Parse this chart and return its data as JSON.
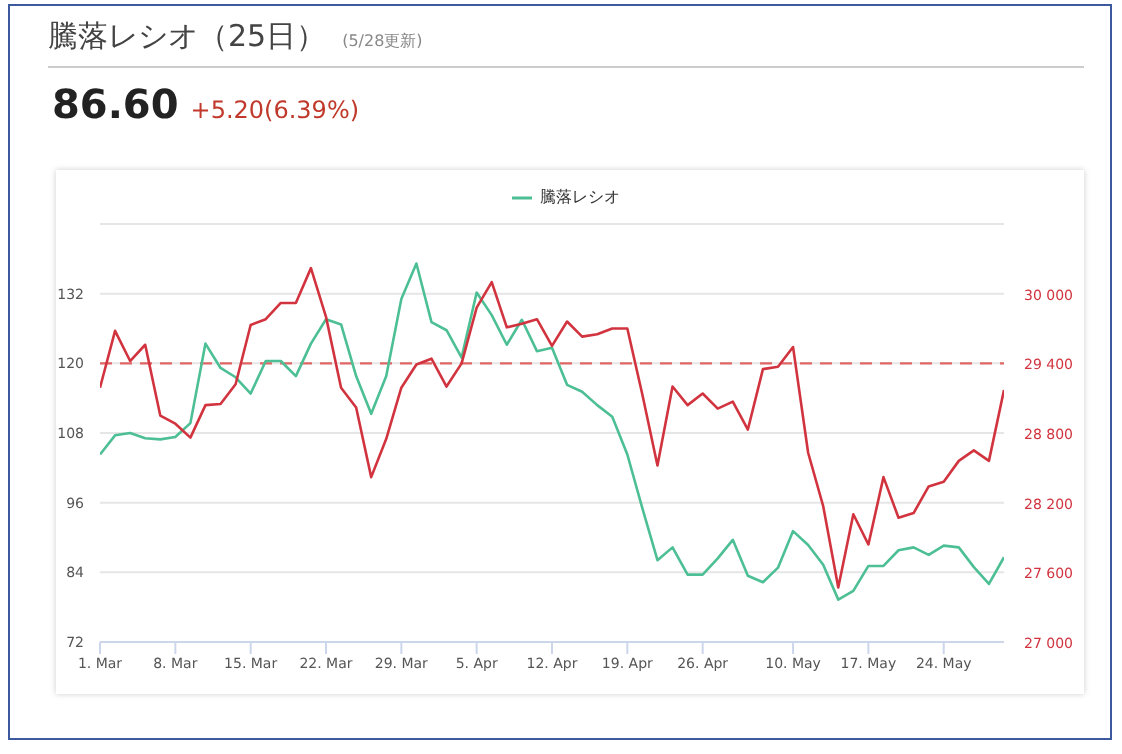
{
  "chart_data": {
    "type": "line",
    "title": "騰落レシオ（25日）",
    "subtitle": "(5/28更新)",
    "annotations": [
      "86.60",
      "+5.20(6.39%)"
    ],
    "categories": [
      "1. Mar",
      null,
      null,
      null,
      null,
      "8. Mar",
      null,
      null,
      null,
      null,
      "15. Mar",
      null,
      null,
      null,
      null,
      "22. Mar",
      null,
      null,
      null,
      null,
      "29. Mar",
      null,
      null,
      null,
      null,
      "5. Apr",
      null,
      null,
      null,
      null,
      "12. Apr",
      null,
      null,
      null,
      null,
      "19. Apr",
      null,
      null,
      null,
      null,
      "26. Apr",
      null,
      null,
      null,
      null,
      null,
      "10. May",
      null,
      null,
      null,
      null,
      "17. May",
      null,
      null,
      null,
      null,
      "24. May",
      null,
      null,
      null,
      null
    ],
    "series": [
      {
        "name": "騰落レシオ",
        "color": "#4dbf94",
        "axis": "y",
        "values": [
          104.3,
          107.6,
          108.0,
          107.1,
          106.9,
          107.3,
          109.7,
          123.4,
          119.2,
          117.6,
          114.8,
          120.4,
          120.4,
          117.8,
          123.4,
          127.6,
          126.7,
          117.8,
          111.3,
          117.8,
          131.1,
          137.2,
          127.1,
          125.7,
          121.0,
          132.2,
          128.3,
          123.2,
          127.5,
          122.1,
          122.7,
          116.3,
          115.1,
          112.8,
          110.8,
          104.3,
          95.0,
          86.1,
          88.3,
          83.6,
          83.6,
          86.4,
          89.6,
          83.4,
          82.3,
          84.8,
          91.1,
          88.7,
          85.3,
          79.3,
          80.8,
          85.1,
          85.1,
          87.8,
          88.3,
          87.0,
          88.6,
          88.3,
          84.9,
          82.0,
          86.6
        ]
      },
      {
        "color": "#d1343f",
        "axis": "y2",
        "values": [
          29190,
          29680,
          29420,
          29560,
          28950,
          28880,
          28760,
          29040,
          29050,
          29220,
          29730,
          29780,
          29920,
          29920,
          30220,
          29800,
          29190,
          29020,
          28420,
          28750,
          29190,
          29390,
          29440,
          29200,
          29400,
          29880,
          30100,
          29710,
          29740,
          29780,
          29550,
          29760,
          29630,
          29650,
          29700,
          29700,
          29130,
          28520,
          29200,
          29040,
          29140,
          29010,
          29070,
          28830,
          29350,
          29370,
          29540,
          28630,
          28170,
          27470,
          28100,
          27840,
          28420,
          28070,
          28110,
          28340,
          28380,
          28560,
          28650,
          28560,
          29170
        ]
      }
    ],
    "ylim": [
      72,
      144
    ],
    "yticks": [
      72,
      84,
      96,
      108,
      120,
      132,
      {
        "value": 144,
        "label": null
      }
    ],
    "y2lim": [
      27000,
      30600
    ],
    "y2ticks": [
      {
        "value": 27000,
        "label": "27 000"
      },
      {
        "value": 27600,
        "label": "27 600"
      },
      {
        "value": 28200,
        "label": "28 200"
      },
      {
        "value": 28800,
        "label": "28 800"
      },
      {
        "value": 29400,
        "label": "29 400"
      },
      {
        "value": 30000,
        "label": "30 000"
      },
      {
        "value": 30600,
        "label": null
      }
    ],
    "ref_lines": [
      {
        "axis": "y",
        "value": 120,
        "color": "#e06666",
        "line_style": "dashed"
      }
    ],
    "grid": "y",
    "legend": "top",
    "marker": "none"
  }
}
